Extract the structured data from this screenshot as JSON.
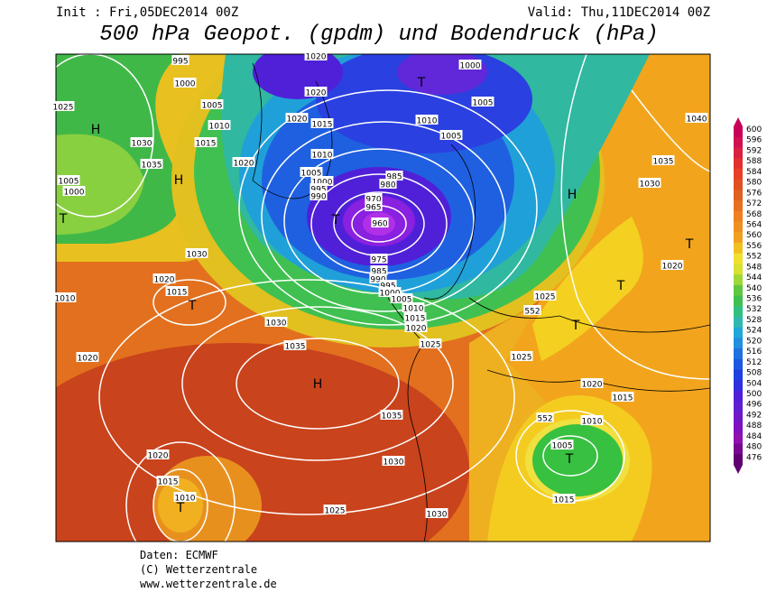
{
  "header": {
    "init": "Init : Fri,05DEC2014 00Z",
    "valid": "Valid: Thu,11DEC2014 00Z",
    "title": "500 hPa Geopot. (gpdm) und Bodendruck (hPa)"
  },
  "colorbar": {
    "labels": [
      "600",
      "596",
      "592",
      "588",
      "584",
      "580",
      "576",
      "572",
      "568",
      "564",
      "560",
      "556",
      "552",
      "548",
      "544",
      "540",
      "536",
      "532",
      "528",
      "524",
      "520",
      "516",
      "512",
      "508",
      "504",
      "500",
      "496",
      "492",
      "488",
      "484",
      "480",
      "476"
    ]
  },
  "map": {
    "labels": [
      "995",
      "1000",
      "1005",
      "1010",
      "1015",
      "1020",
      "1025",
      "1030",
      "1035",
      "1020",
      "1000",
      "1005",
      "1010",
      "1005",
      "1020",
      "1020",
      "1015",
      "1010",
      "1005",
      "1000",
      "995",
      "990",
      "985",
      "980",
      "970",
      "965",
      "960",
      "975",
      "985",
      "990",
      "995",
      "1000",
      "1005",
      "1010",
      "1015",
      "1020",
      "1025",
      "1030",
      "1035",
      "1020",
      "1020",
      "1015",
      "1030",
      "1010",
      "1005",
      "1000",
      "1035",
      "1030",
      "1040",
      "1020",
      "1025",
      "1025",
      "1020",
      "1015",
      "1010",
      "1005",
      "1015",
      "1035",
      "1030",
      "1025",
      "1030",
      "1020",
      "1015",
      "1010",
      "552",
      "552"
    ],
    "symbols": [
      "H",
      "H",
      "H",
      "H",
      "T",
      "T",
      "T",
      "T",
      "T",
      "T",
      "T",
      "T",
      "T"
    ]
  },
  "footer": {
    "source": "Daten: ECMWF",
    "copyright": "(C) Wetterzentrale",
    "url": "www.wetterzentrale.de"
  }
}
